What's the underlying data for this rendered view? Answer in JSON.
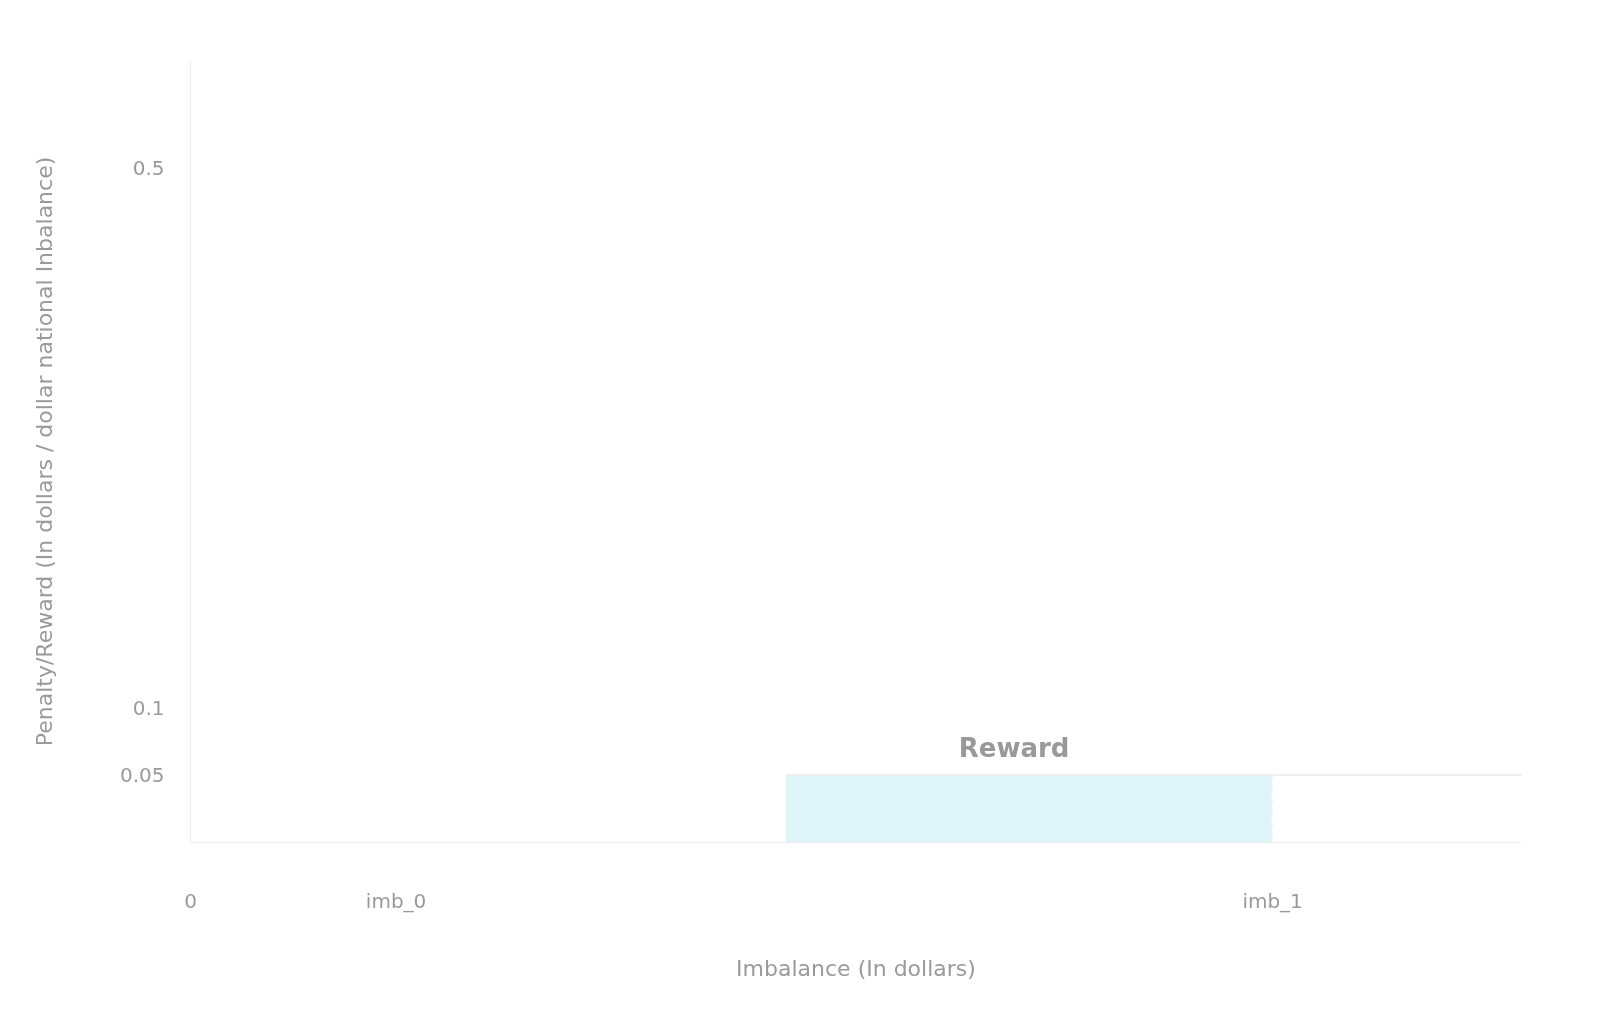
{
  "chart_data": {
    "type": "area",
    "xlabel": "Imbalance (In dollars)",
    "ylabel": "Penalty/Reward (In dollars / dollar national Inbalance)",
    "series": [
      {
        "color": "#dff4f8",
        "x": [
          0.55,
          1.0
        ],
        "values": [
          0.05,
          0.05
        ]
      },
      {
        "type": "line",
        "color": "#eeeeee",
        "x": [
          0.55,
          1.23
        ],
        "values": [
          0.05,
          0.05
        ]
      }
    ],
    "xlim": [
      0,
      1.23
    ],
    "ylim": [
      0,
      0.58
    ],
    "xticks": [
      0,
      {
        "value": 0.19,
        "label": "imb_0"
      },
      {
        "value": 1.0,
        "label": "imb_1"
      }
    ],
    "yticks": [
      0.05,
      0.1,
      0.5
    ],
    "ref_lines": [
      {
        "axis": "x",
        "value": 1.0,
        "label": null,
        "color": "#ffffff",
        "line_style": "dashed"
      }
    ],
    "annotations": [
      {
        "text": "Reward",
        "x": 0.71,
        "y": 0.05
      }
    ],
    "grid": false
  }
}
